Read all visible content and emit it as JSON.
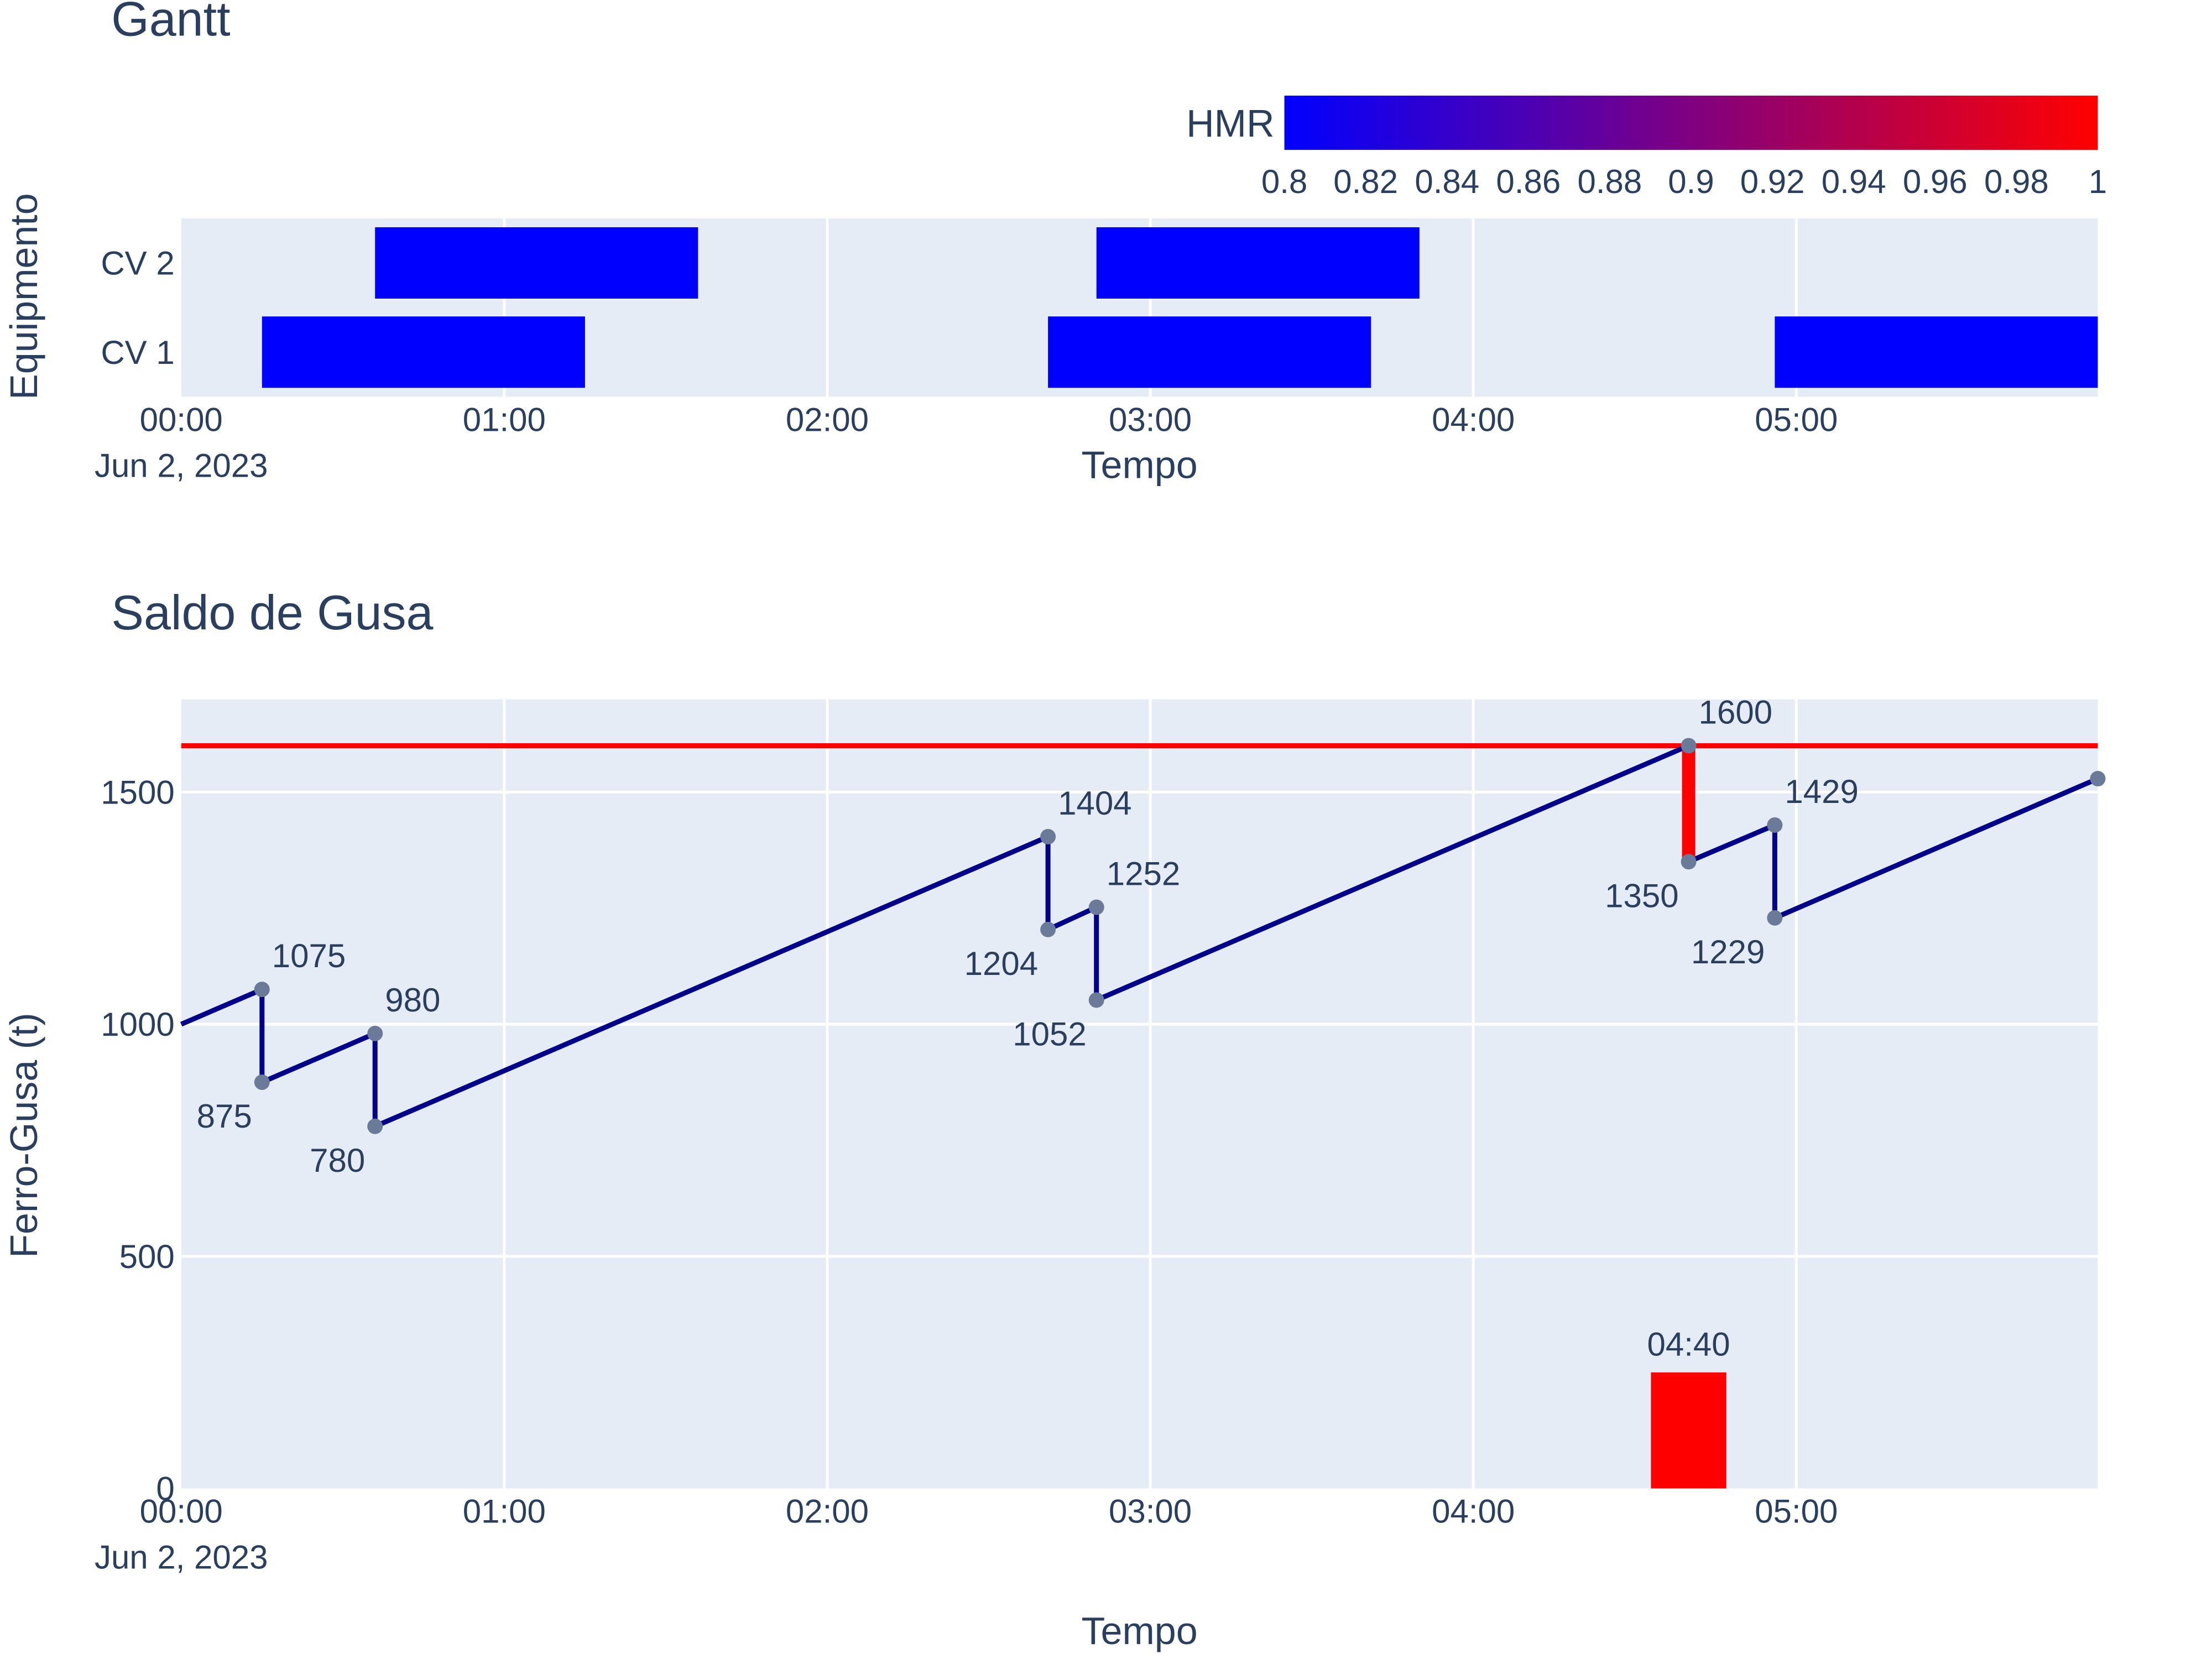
{
  "chart_data": [
    {
      "type": "gantt",
      "title": "Gantt",
      "xlabel": "Tempo",
      "ylabel": "Equipmento",
      "x_ticks": [
        "00:00",
        "01:00",
        "02:00",
        "03:00",
        "04:00",
        "05:00"
      ],
      "x_date_label": "Jun 2, 2023",
      "x_range": [
        "00:00",
        "05:56"
      ],
      "y_categories": [
        "CV 1",
        "CV 2"
      ],
      "colorbar": {
        "title": "HMR",
        "range": [
          0.8,
          1
        ],
        "ticks": [
          "0.8",
          "0.82",
          "0.84",
          "0.86",
          "0.88",
          "0.9",
          "0.92",
          "0.94",
          "0.96",
          "0.98",
          "1"
        ],
        "colors": [
          "#0000ff",
          "#ff0000"
        ]
      },
      "tasks": [
        {
          "resource": "CV 1",
          "start": "00:15",
          "finish": "01:15",
          "hmr": 0.8
        },
        {
          "resource": "CV 2",
          "start": "00:36",
          "finish": "01:36",
          "hmr": 0.8
        },
        {
          "resource": "CV 1",
          "start": "02:41",
          "finish": "03:41",
          "hmr": 0.8
        },
        {
          "resource": "CV 2",
          "start": "02:50",
          "finish": "03:50",
          "hmr": 0.8
        },
        {
          "resource": "CV 1",
          "start": "04:56",
          "finish": "05:56",
          "hmr": 0.8
        }
      ],
      "grid": true
    },
    {
      "type": "line",
      "title": "Saldo de Gusa",
      "xlabel": "Tempo",
      "ylabel": "Ferro-Gusa (t)",
      "x_ticks": [
        "00:00",
        "01:00",
        "02:00",
        "03:00",
        "04:00",
        "05:00"
      ],
      "x_date_label": "Jun 2, 2023",
      "x_range": [
        "00:00",
        "05:56"
      ],
      "y_ticks": [
        "0",
        "500",
        "1000",
        "1500"
      ],
      "ylim": [
        0,
        1700
      ],
      "grid": true,
      "line_color": "#00008b",
      "limit_line": {
        "y": 1600,
        "color": "#ff0000"
      },
      "series": [
        {
          "points": [
            {
              "t": "00:00",
              "y": 1000
            },
            {
              "t": "00:15",
              "y": 1075
            },
            {
              "t": "00:15",
              "y": 875
            },
            {
              "t": "00:36",
              "y": 980
            },
            {
              "t": "00:36",
              "y": 780
            },
            {
              "t": "02:41",
              "y": 1404
            },
            {
              "t": "02:41",
              "y": 1204
            },
            {
              "t": "02:50",
              "y": 1252
            },
            {
              "t": "02:50",
              "y": 1052
            },
            {
              "t": "04:40",
              "y": 1600
            },
            {
              "t": "04:40",
              "y": 1350
            },
            {
              "t": "04:56",
              "y": 1429
            },
            {
              "t": "04:56",
              "y": 1229
            },
            {
              "t": "05:56",
              "y": 1529
            }
          ]
        }
      ],
      "marker_labels": [
        {
          "t": "00:15",
          "y": 1075,
          "text": "1075",
          "pos": "above"
        },
        {
          "t": "00:15",
          "y": 875,
          "text": "875",
          "pos": "below"
        },
        {
          "t": "00:36",
          "y": 980,
          "text": "980",
          "pos": "above"
        },
        {
          "t": "00:36",
          "y": 780,
          "text": "780",
          "pos": "below"
        },
        {
          "t": "02:41",
          "y": 1404,
          "text": "1404",
          "pos": "above"
        },
        {
          "t": "02:41",
          "y": 1204,
          "text": "1204",
          "pos": "below"
        },
        {
          "t": "02:50",
          "y": 1252,
          "text": "1252",
          "pos": "above"
        },
        {
          "t": "02:50",
          "y": 1052,
          "text": "1052",
          "pos": "below"
        },
        {
          "t": "04:40",
          "y": 1600,
          "text": "1600",
          "pos": "above"
        },
        {
          "t": "04:40",
          "y": 1350,
          "text": "1350",
          "pos": "below"
        },
        {
          "t": "04:56",
          "y": 1429,
          "text": "1429",
          "pos": "above"
        },
        {
          "t": "04:56",
          "y": 1229,
          "text": "1229",
          "pos": "below"
        }
      ],
      "overflow_segment": {
        "t": "04:40",
        "y_from": 1600,
        "y_to": 1350,
        "color": "#ff0000"
      },
      "alert_bar": {
        "t_start": "04:33",
        "t_end": "04:47",
        "y": 250,
        "label": "04:40",
        "color": "#ff0000"
      }
    }
  ]
}
